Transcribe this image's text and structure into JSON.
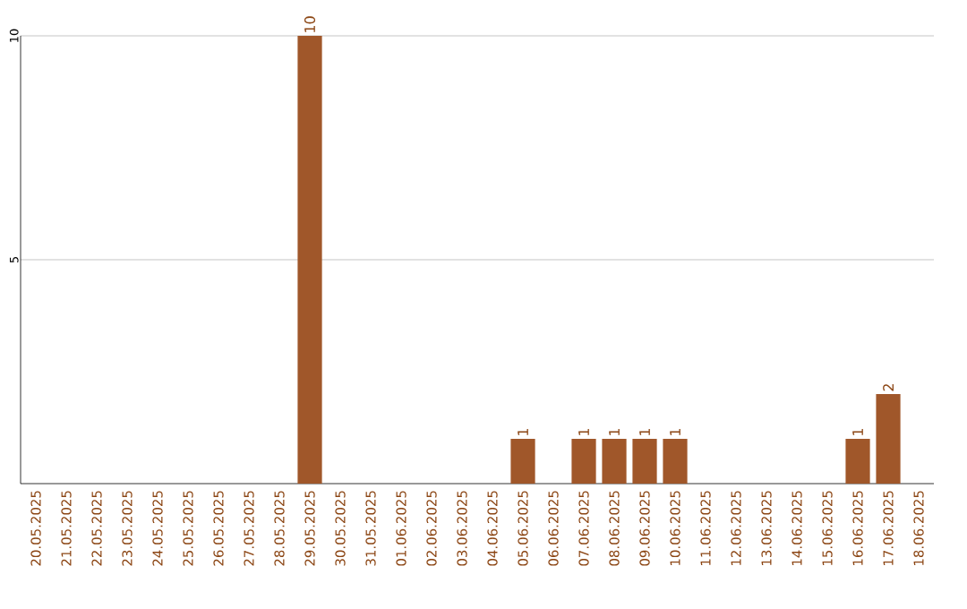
{
  "chart_data": {
    "type": "bar",
    "categories": [
      "20.05.2025",
      "21.05.2025",
      "22.05.2025",
      "23.05.2025",
      "24.05.2025",
      "25.05.2025",
      "26.05.2025",
      "27.05.2025",
      "28.05.2025",
      "29.05.2025",
      "30.05.2025",
      "31.05.2025",
      "01.06.2025",
      "02.06.2025",
      "03.06.2025",
      "04.06.2025",
      "05.06.2025",
      "06.06.2025",
      "07.06.2025",
      "08.06.2025",
      "09.06.2025",
      "10.06.2025",
      "11.06.2025",
      "12.06.2025",
      "13.06.2025",
      "14.06.2025",
      "15.06.2025",
      "16.06.2025",
      "17.06.2025",
      "18.06.2025"
    ],
    "values": [
      0,
      0,
      0,
      0,
      0,
      0,
      0,
      0,
      0,
      10,
      0,
      0,
      0,
      0,
      0,
      0,
      1,
      0,
      1,
      1,
      1,
      1,
      0,
      0,
      0,
      0,
      0,
      1,
      2,
      0
    ],
    "value_labels": [
      null,
      null,
      null,
      null,
      null,
      null,
      null,
      null,
      null,
      "10",
      null,
      null,
      null,
      null,
      null,
      null,
      "1",
      null,
      "1",
      "1",
      "1",
      "1",
      null,
      null,
      null,
      null,
      null,
      "1",
      "2",
      null
    ],
    "color": "#a0572a",
    "ylim": [
      0,
      10
    ],
    "yticks": [
      {
        "value": 5,
        "label": "5"
      },
      {
        "value": 10,
        "label": "10"
      }
    ],
    "grid": "y"
  }
}
